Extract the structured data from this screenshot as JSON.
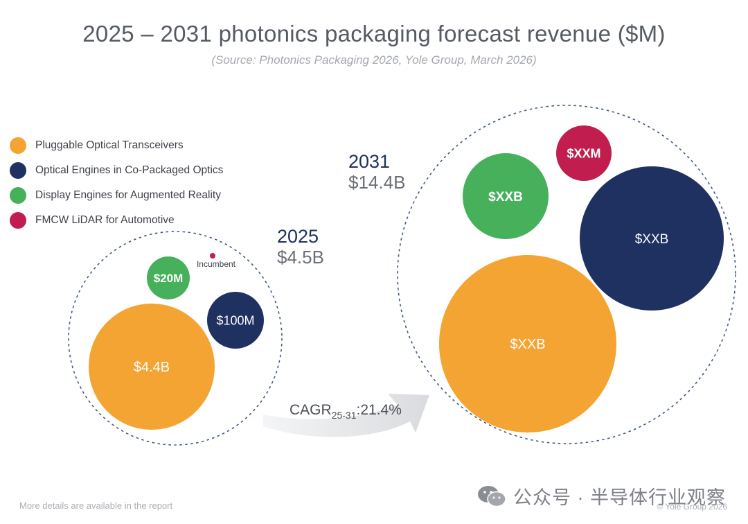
{
  "header": {
    "title": "2025 – 2031 photonics packaging forecast revenue ($M)",
    "subtitle": "(Source: Photonics Packaging 2026, Yole Group, March 2026)"
  },
  "legend": [
    {
      "label": "Pluggable Optical Transceivers",
      "color": "#f4a433"
    },
    {
      "label": "Optical Engines in Co-Packaged Optics",
      "color": "#1f3160"
    },
    {
      "label": "Display Engines for Augmented Reality",
      "color": "#46b05a"
    },
    {
      "label": "FMCW LiDAR for Automotive",
      "color": "#c11d4e"
    }
  ],
  "chart_data": {
    "type": "bubble",
    "title": "2025 – 2031 photonics packaging forecast revenue ($M)",
    "groups": [
      {
        "year": "2025",
        "total": "$4.5B",
        "bubbles": [
          {
            "segment": "Pluggable Optical Transceivers",
            "label": "$4.4B",
            "value_musd": 4400
          },
          {
            "segment": "Optical Engines in Co-Packaged Optics",
            "label": "$100M",
            "value_musd": 100
          },
          {
            "segment": "Display Engines for Augmented Reality",
            "label": "$20M",
            "value_musd": 20
          },
          {
            "segment": "FMCW LiDAR for Automotive",
            "label": "Incumbent",
            "value_musd": null
          }
        ]
      },
      {
        "year": "2031",
        "total": "$14.4B",
        "bubbles": [
          {
            "segment": "Pluggable Optical Transceivers",
            "label": "$XXB",
            "value_musd": null
          },
          {
            "segment": "Optical Engines in Co-Packaged Optics",
            "label": "$XXB",
            "value_musd": null
          },
          {
            "segment": "Display Engines for Augmented Reality",
            "label": "$XXB",
            "value_musd": null
          },
          {
            "segment": "FMCW LiDAR for Automotive",
            "label": "$XXM",
            "value_musd": null
          }
        ]
      }
    ],
    "cagr": {
      "prefix": "CAGR",
      "subscript": "25-31",
      "value": ":21.4%"
    }
  },
  "footer": {
    "left": "More details are available in the report",
    "right": "© Yole Group 2026"
  },
  "watermark": {
    "text": "公众号 · 半导体行业观察",
    "icon": "wechat-icon"
  }
}
